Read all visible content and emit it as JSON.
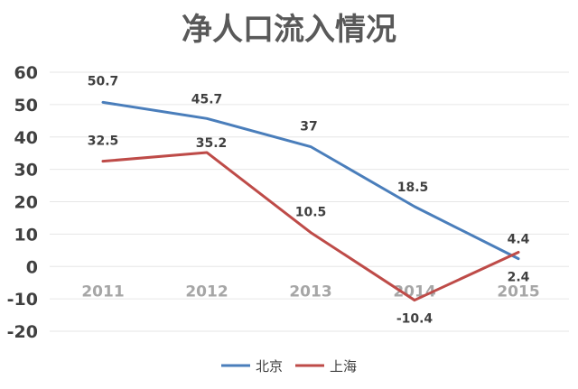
{
  "chart_data": {
    "type": "line",
    "title": "净人口流入情况",
    "categories": [
      "2011",
      "2012",
      "2013",
      "2014",
      "2015"
    ],
    "series": [
      {
        "name": "北京",
        "color": "#4a7ebb",
        "values": [
          50.7,
          45.7,
          37,
          18.5,
          2.4
        ]
      },
      {
        "name": "上海",
        "color": "#be4b48",
        "values": [
          32.5,
          35.2,
          10.5,
          -10.4,
          4.4
        ]
      }
    ],
    "data_labels": {
      "北京": [
        "50.7",
        "45.7",
        "37",
        "18.5",
        "2.4"
      ],
      "上海": [
        "32.5",
        "35.2",
        "10.5",
        "-10.4",
        "4.4"
      ]
    },
    "ylim": [
      -20,
      60
    ],
    "yticks": [
      "60",
      "50",
      "40",
      "30",
      "20",
      "10",
      "0",
      "-10",
      "-20"
    ],
    "grid": true,
    "legend_position": "bottom"
  }
}
